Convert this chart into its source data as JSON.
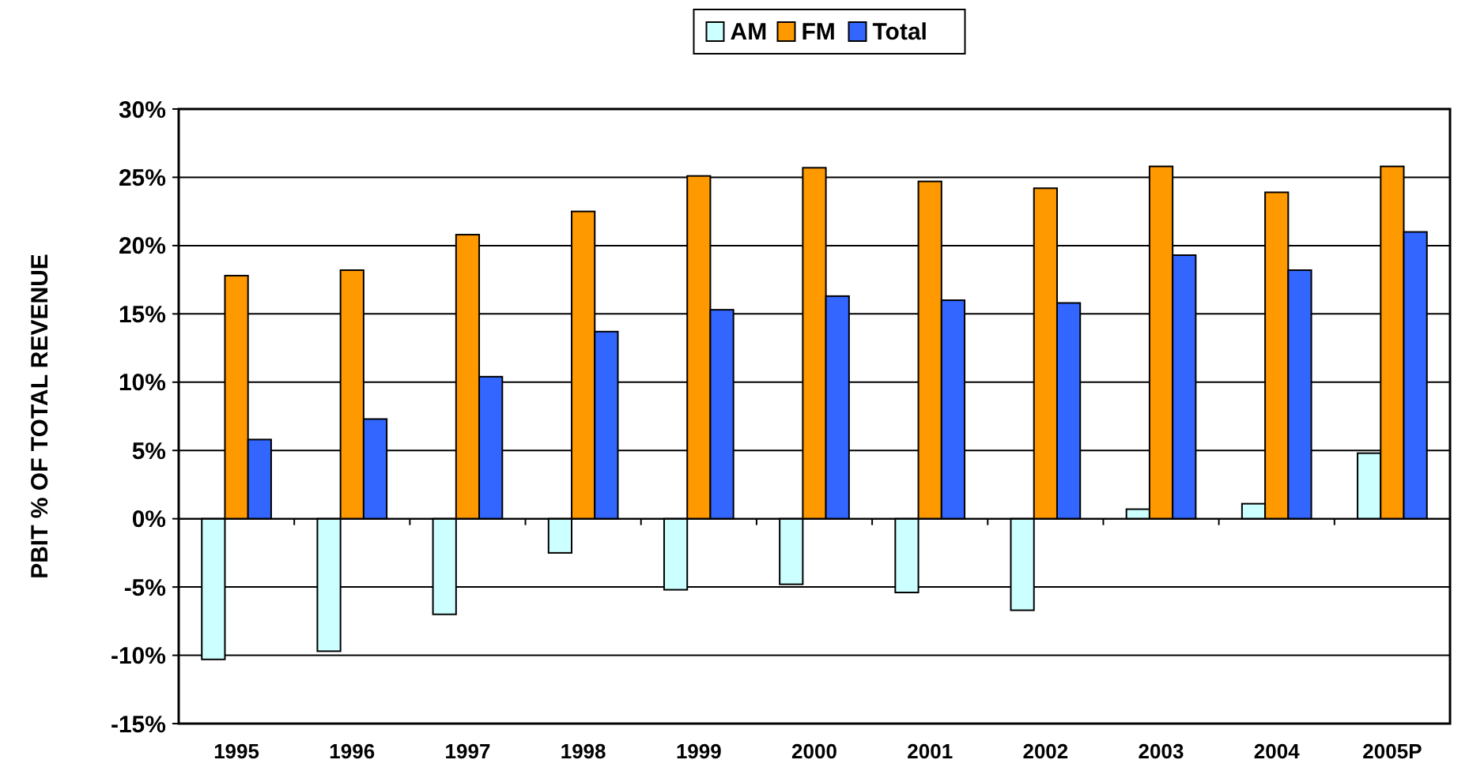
{
  "chart_data": {
    "type": "bar",
    "ylabel": "PBIT % OF TOTAL REVENUE",
    "categories": [
      "1995",
      "1996",
      "1997",
      "1998",
      "1999",
      "2000",
      "2001",
      "2002",
      "2003",
      "2004",
      "2005P"
    ],
    "series": [
      {
        "name": "AM",
        "color": "#ccffff",
        "values": [
          -10.3,
          -9.7,
          -7.0,
          -2.5,
          -5.2,
          -4.8,
          -5.4,
          -6.7,
          0.7,
          1.1,
          4.8
        ]
      },
      {
        "name": "FM",
        "color": "#ff9900",
        "values": [
          17.8,
          18.2,
          20.8,
          22.5,
          25.1,
          25.7,
          24.7,
          24.2,
          25.8,
          23.9,
          25.8
        ]
      },
      {
        "name": "Total",
        "color": "#3366ff",
        "values": [
          5.8,
          7.3,
          10.4,
          13.7,
          15.3,
          16.3,
          16.0,
          15.8,
          19.3,
          18.2,
          21.0
        ]
      }
    ],
    "ylim": [
      -15,
      30
    ],
    "yticks": [
      {
        "value": -15,
        "label": "-15%"
      },
      {
        "value": -10,
        "label": "-10%"
      },
      {
        "value": -5,
        "label": "-5%"
      },
      {
        "value": 0,
        "label": "0%"
      },
      {
        "value": 5,
        "label": "5%"
      },
      {
        "value": 10,
        "label": "10%"
      },
      {
        "value": 15,
        "label": "15%"
      },
      {
        "value": 20,
        "label": "20%"
      },
      {
        "value": 25,
        "label": "25%"
      },
      {
        "value": 30,
        "label": "30%"
      }
    ],
    "grid": "y",
    "legend": "top"
  }
}
